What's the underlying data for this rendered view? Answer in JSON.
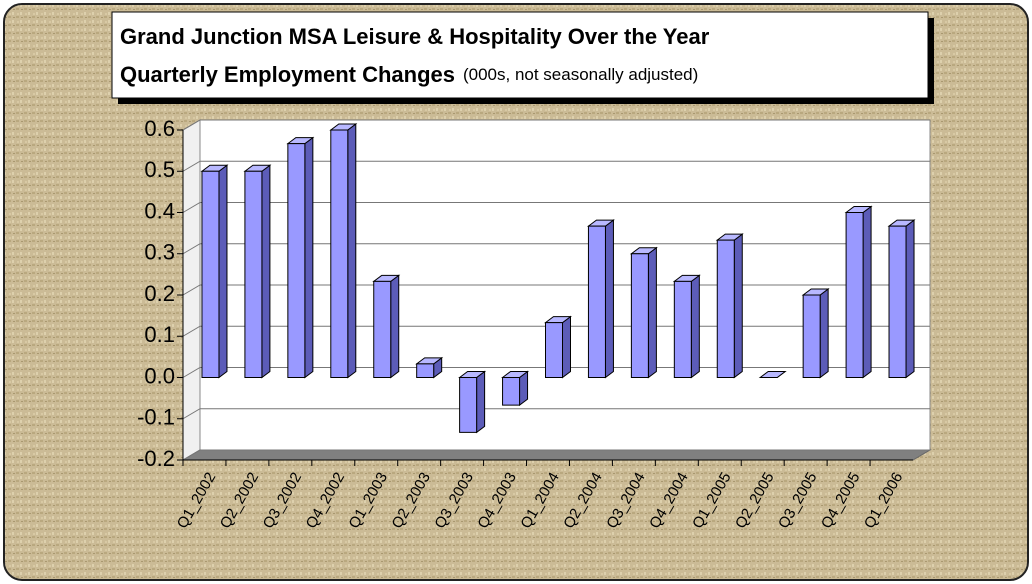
{
  "chart_data": {
    "type": "bar",
    "title_lines": [
      "Grand Junction MSA Leisure & Hospitality Over the Year",
      "Quarterly Employment Changes"
    ],
    "subtitle": "(000s, not seasonally adjusted)",
    "categories": [
      "Q1_2002",
      "Q2_2002",
      "Q3_2002",
      "Q4_2002",
      "Q1_2003",
      "Q2_2003",
      "Q3_2003",
      "Q4_2003",
      "Q1_2004",
      "Q2_2004",
      "Q3_2004",
      "Q4_2004",
      "Q1_2005",
      "Q2_2005",
      "Q3_2005",
      "Q4_2005",
      "Q1_2006"
    ],
    "values": [
      0.5,
      0.5,
      0.567,
      0.6,
      0.233,
      0.033,
      -0.133,
      -0.067,
      0.133,
      0.367,
      0.3,
      0.233,
      0.333,
      0.0,
      0.2,
      0.4,
      0.367
    ],
    "color": "#9999ff",
    "ylim": [
      -0.2,
      0.6
    ],
    "yticks": [
      0.6,
      0.5,
      0.4,
      0.3,
      0.2,
      0.1,
      {
        "value": 0,
        "label": "0.0"
      },
      -0.1,
      -0.2
    ],
    "grid": true
  }
}
